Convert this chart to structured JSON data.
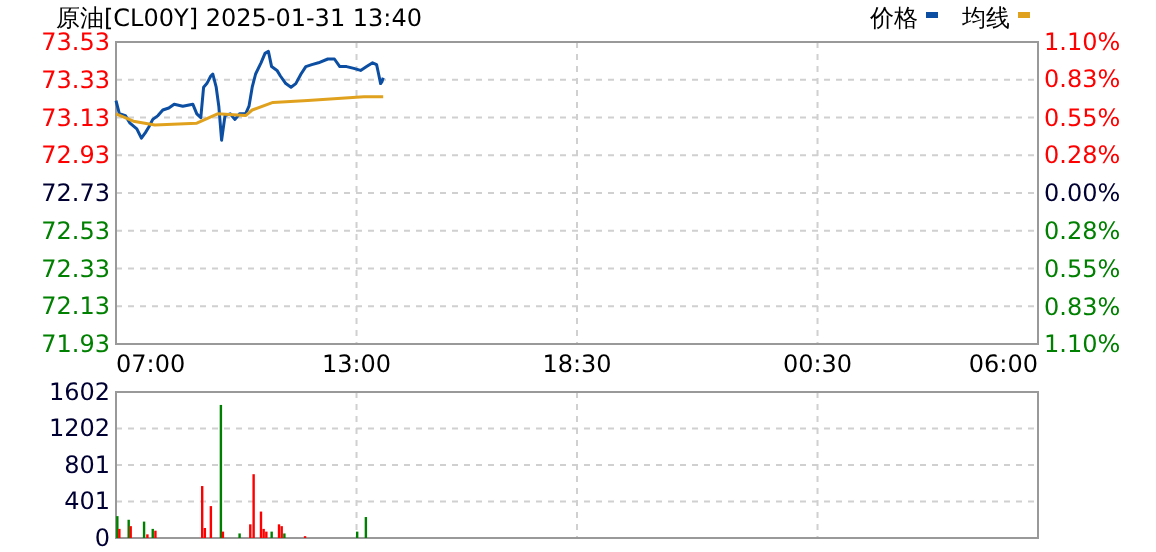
{
  "chart_data": [
    {
      "type": "line",
      "title": "原油[CL00Y] 2025-01-31 13:40",
      "legend": "top right",
      "grid": true,
      "xlim": [
        "2025-01-31T07:00",
        "2025-02-01T06:00"
      ],
      "xticks": [
        {
          "value": "2025-01-31T07:00",
          "label": "07:00"
        },
        {
          "value": "2025-01-31T13:00",
          "label": "13:00"
        },
        {
          "value": "2025-01-31T18:30",
          "label": "18:30"
        },
        {
          "value": "2025-02-01T00:30",
          "label": "00:30"
        },
        {
          "value": "2025-02-01T06:00",
          "label": "06:00"
        }
      ],
      "ylim": [
        71.93,
        73.53
      ],
      "yticks": [
        71.93,
        72.13,
        72.33,
        72.53,
        72.73,
        72.93,
        73.13,
        73.33,
        73.53
      ],
      "y2lim": [
        -1.1,
        1.1
      ],
      "y2ticks": [
        {
          "value": 1.1,
          "label": "1.10%"
        },
        {
          "value": 0.83,
          "label": "0.83%"
        },
        {
          "value": 0.55,
          "label": "0.55%"
        },
        {
          "value": 0.28,
          "label": "0.28%"
        },
        {
          "value": 0,
          "label": "0.00%"
        },
        {
          "value": -0.28,
          "label": "0.28%"
        },
        {
          "value": -0.55,
          "label": "0.55%"
        },
        {
          "value": -0.83,
          "label": "0.83%"
        },
        {
          "value": -1.1,
          "label": "1.10%"
        }
      ],
      "series": [
        {
          "name": "价格",
          "color": "#0b4ea2",
          "x": [
            "2025-01-31T07:00",
            "2025-01-31T07:05",
            "2025-01-31T07:14",
            "2025-01-31T07:21",
            "2025-01-31T07:31",
            "2025-01-31T07:38",
            "2025-01-31T07:44",
            "2025-01-31T07:49",
            "2025-01-31T07:55",
            "2025-01-31T08:03",
            "2025-01-31T08:10",
            "2025-01-31T08:19",
            "2025-01-31T08:27",
            "2025-01-31T08:40",
            "2025-01-31T08:55",
            "2025-01-31T09:01",
            "2025-01-31T09:07",
            "2025-01-31T09:11",
            "2025-01-31T09:16",
            "2025-01-31T09:22",
            "2025-01-31T09:25",
            "2025-01-31T09:30",
            "2025-01-31T09:34",
            "2025-01-31T09:38",
            "2025-01-31T09:43",
            "2025-01-31T09:51",
            "2025-01-31T09:58",
            "2025-01-31T10:05",
            "2025-01-31T10:14",
            "2025-01-31T10:19",
            "2025-01-31T10:24",
            "2025-01-31T10:29",
            "2025-01-31T10:37",
            "2025-01-31T10:43",
            "2025-01-31T10:48",
            "2025-01-31T10:53",
            "2025-01-31T11:01",
            "2025-01-31T11:06",
            "2025-01-31T11:14",
            "2025-01-31T11:22",
            "2025-01-31T11:29",
            "2025-01-31T11:37",
            "2025-01-31T11:44",
            "2025-01-31T11:53",
            "2025-01-31T12:03",
            "2025-01-31T12:17",
            "2025-01-31T12:27",
            "2025-01-31T12:35",
            "2025-01-31T12:45",
            "2025-01-31T12:56",
            "2025-01-31T13:06",
            "2025-01-31T13:15",
            "2025-01-31T13:24",
            "2025-01-31T13:30",
            "2025-01-31T13:33",
            "2025-01-31T13:36",
            "2025-01-31T13:38",
            "2025-01-31T13:40"
          ],
          "values": [
            73.22,
            73.15,
            73.14,
            73.1,
            73.07,
            73.02,
            73.05,
            73.08,
            73.12,
            73.14,
            73.17,
            73.18,
            73.2,
            73.19,
            73.2,
            73.15,
            73.13,
            73.29,
            73.31,
            73.35,
            73.36,
            73.29,
            73.19,
            73.01,
            73.14,
            73.15,
            73.12,
            73.15,
            73.15,
            73.19,
            73.29,
            73.36,
            73.42,
            73.47,
            73.48,
            73.4,
            73.38,
            73.35,
            73.31,
            73.29,
            73.31,
            73.36,
            73.4,
            73.41,
            73.42,
            73.44,
            73.44,
            73.4,
            73.4,
            73.39,
            73.38,
            73.4,
            73.42,
            73.41,
            73.36,
            73.31,
            73.32,
            73.34
          ]
        },
        {
          "name": "均线",
          "color": "#e0a21e",
          "x": [
            "2025-01-31T07:00",
            "2025-01-31T07:26",
            "2025-01-31T07:58",
            "2025-01-31T09:01",
            "2025-01-31T09:32",
            "2025-01-31T10:14",
            "2025-01-31T10:24",
            "2025-01-31T10:55",
            "2025-01-31T11:47",
            "2025-01-31T13:11",
            "2025-01-31T13:40"
          ],
          "values": [
            73.15,
            73.11,
            73.09,
            73.1,
            73.15,
            73.14,
            73.17,
            73.21,
            73.22,
            73.24,
            73.24
          ]
        }
      ]
    },
    {
      "type": "bar",
      "grid": true,
      "tick_labels": "y",
      "xlim": [
        "2025-01-31T07:00",
        "2025-02-01T06:00"
      ],
      "xticks": [
        {
          "value": "2025-01-31T07:00",
          "label": null
        },
        {
          "value": "2025-01-31T13:00",
          "label": null
        },
        {
          "value": "2025-01-31T18:30",
          "label": null
        },
        {
          "value": "2025-02-01T00:30",
          "label": null
        },
        {
          "value": "2025-02-01T06:00",
          "label": null
        }
      ],
      "ylim": [
        0,
        1602
      ],
      "yticks": [
        0,
        401,
        801,
        1202,
        1602
      ],
      "x": [
        "2025-01-31T07:02",
        "2025-01-31T07:05",
        "2025-01-31T07:19",
        "2025-01-31T07:22",
        "2025-01-31T07:42",
        "2025-01-31T07:47",
        "2025-01-31T07:55",
        "2025-01-31T07:59",
        "2025-01-31T09:09",
        "2025-01-31T09:13",
        "2025-01-31T09:22",
        "2025-01-31T09:37",
        "2025-01-31T09:40",
        "2025-01-31T10:05",
        "2025-01-31T10:21",
        "2025-01-31T10:26",
        "2025-01-31T10:37",
        "2025-01-31T10:41",
        "2025-01-31T10:45",
        "2025-01-31T10:53",
        "2025-01-31T11:04",
        "2025-01-31T11:08",
        "2025-01-31T11:12",
        "2025-01-31T11:43",
        "2025-01-31T13:01",
        "2025-01-31T13:14"
      ],
      "values": [
        240,
        100,
        200,
        130,
        180,
        40,
        100,
        80,
        570,
        110,
        350,
        1460,
        70,
        50,
        150,
        700,
        290,
        100,
        70,
        70,
        150,
        130,
        50,
        20,
        70,
        230
      ],
      "colors": [
        "#008000",
        "#ff0000",
        "#008000",
        "#ff0000",
        "#008000",
        "#ff0000",
        "#008000",
        "#ff0000",
        "#ff0000",
        "#ff0000",
        "#ff0000",
        "#008000",
        "#ff0000",
        "#008000",
        "#ff0000",
        "#ff0000",
        "#ff0000",
        "#ff0000",
        "#ff0000",
        "#008000",
        "#ff0000",
        "#ff0000",
        "#008000",
        "#ff0000",
        "#008000",
        "#008000"
      ]
    }
  ]
}
